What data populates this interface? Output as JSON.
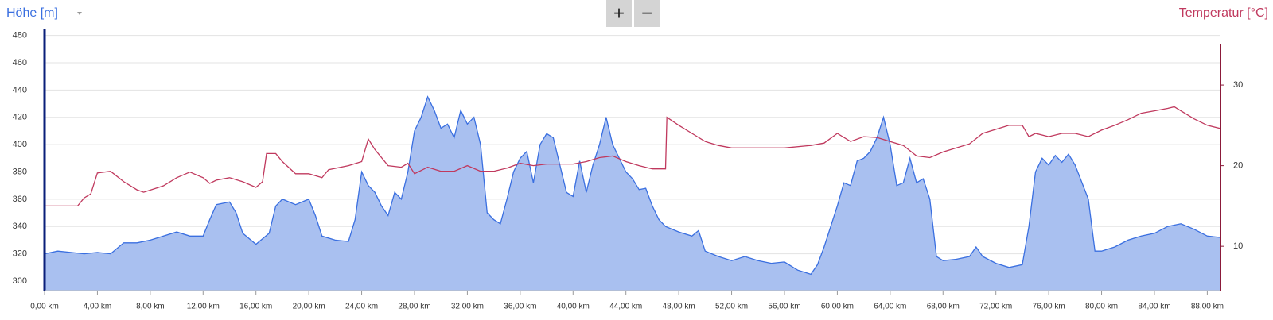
{
  "zoom_buttons": [
    "+",
    "−"
  ],
  "chart_data": {
    "type": "area",
    "xlim": [
      0,
      89
    ],
    "xticks": [
      {
        "value": 0,
        "label": "0,00 km"
      },
      {
        "value": 4,
        "label": "4,00 km"
      },
      {
        "value": 8,
        "label": "8,00 km"
      },
      {
        "value": 12,
        "label": "12,00 km"
      },
      {
        "value": 16,
        "label": "16,00 km"
      },
      {
        "value": 20,
        "label": "20,00 km"
      },
      {
        "value": 24,
        "label": "24,00 km"
      },
      {
        "value": 28,
        "label": "28,00 km"
      },
      {
        "value": 32,
        "label": "32,00 km"
      },
      {
        "value": 36,
        "label": "36,00 km"
      },
      {
        "value": 40,
        "label": "40,00 km"
      },
      {
        "value": 44,
        "label": "44,00 km"
      },
      {
        "value": 48,
        "label": "48,00 km"
      },
      {
        "value": 52,
        "label": "52,00 km"
      },
      {
        "value": 56,
        "label": "56,00 km"
      },
      {
        "value": 60,
        "label": "60,00 km"
      },
      {
        "value": 64,
        "label": "64,00 km"
      },
      {
        "value": 68,
        "label": "68,00 km"
      },
      {
        "value": 72,
        "label": "72,00 km"
      },
      {
        "value": 76,
        "label": "76,00 km"
      },
      {
        "value": 80,
        "label": "80,00 km"
      },
      {
        "value": 84,
        "label": "84,00 km"
      },
      {
        "value": 88,
        "label": "88,00 km"
      }
    ],
    "ylim": [
      293,
      485
    ],
    "yticks": [
      300,
      320,
      340,
      360,
      380,
      400,
      420,
      440,
      460,
      480
    ],
    "y2lim": [
      4.5,
      37
    ],
    "y2ticks": [
      10,
      20,
      30
    ],
    "grid": true,
    "series": [
      {
        "name": "Höhe [m]",
        "type": "area",
        "color": "#3a6fe0",
        "fill": "#a9c0f0",
        "x": [
          0,
          1,
          2,
          3,
          4,
          5,
          6,
          7,
          8,
          9,
          10,
          11,
          12,
          12.5,
          13,
          14,
          14.5,
          15,
          16,
          17,
          17.5,
          18,
          19,
          20,
          20.5,
          21,
          22,
          23,
          23.5,
          24,
          24.5,
          25,
          25.5,
          26,
          26.5,
          27,
          27.5,
          28,
          28.5,
          29,
          29.5,
          30,
          30.5,
          31,
          31.5,
          32,
          32.5,
          33,
          33.5,
          34,
          34.5,
          35,
          35.5,
          36,
          36.5,
          37,
          37.5,
          38,
          38.5,
          39,
          39.5,
          40,
          40.5,
          41,
          41.5,
          42,
          42.5,
          43,
          43.5,
          44,
          44.5,
          45,
          45.5,
          46,
          46.5,
          47,
          48,
          49,
          49.5,
          50,
          51,
          52,
          53,
          54,
          55,
          56,
          57,
          58,
          58.5,
          59,
          59.5,
          60,
          60.5,
          61,
          61.5,
          62,
          62.5,
          63,
          63.5,
          64,
          64.5,
          65,
          65.5,
          66,
          66.5,
          67,
          67.5,
          68,
          69,
          70,
          70.5,
          71,
          72,
          73,
          74,
          74.5,
          75,
          75.5,
          76,
          76.5,
          77,
          77.5,
          78,
          79,
          79.5,
          80,
          81,
          82,
          83,
          84,
          85,
          86,
          87,
          88,
          89
        ],
        "values": [
          320,
          322,
          321,
          320,
          321,
          320,
          328,
          328,
          330,
          333,
          336,
          333,
          333,
          345,
          356,
          358,
          350,
          335,
          327,
          335,
          355,
          360,
          356,
          360,
          348,
          333,
          330,
          329,
          345,
          380,
          370,
          365,
          355,
          348,
          365,
          360,
          380,
          410,
          420,
          435,
          425,
          412,
          415,
          405,
          425,
          415,
          420,
          400,
          350,
          345,
          342,
          360,
          380,
          390,
          395,
          372,
          400,
          408,
          405,
          385,
          365,
          362,
          388,
          365,
          385,
          400,
          420,
          400,
          390,
          380,
          375,
          367,
          368,
          355,
          345,
          340,
          336,
          333,
          337,
          322,
          318,
          315,
          318,
          315,
          313,
          314,
          308,
          305,
          312,
          325,
          340,
          355,
          372,
          370,
          388,
          390,
          395,
          405,
          420,
          400,
          370,
          372,
          390,
          372,
          375,
          360,
          318,
          315,
          316,
          318,
          325,
          318,
          313,
          310,
          312,
          340,
          380,
          390,
          385,
          392,
          387,
          393,
          385,
          360,
          322,
          322,
          325,
          330,
          333,
          335,
          340,
          342,
          338,
          333,
          332
        ]
      },
      {
        "name": "Temperatur [°C]",
        "type": "line",
        "axis": "y2",
        "color": "#c0395e",
        "x": [
          0,
          2.5,
          3,
          3.5,
          4,
          5,
          6,
          7,
          7.5,
          9,
          10,
          11,
          12,
          12.5,
          13,
          14,
          15,
          16,
          16.5,
          16.8,
          17.5,
          18,
          19,
          20,
          21,
          21.5,
          23,
          24,
          24.5,
          25,
          26,
          27,
          27.5,
          28,
          29,
          30,
          31,
          32,
          33,
          34,
          35,
          36,
          37,
          38,
          39,
          40,
          41,
          42,
          43,
          44,
          45,
          46,
          47,
          47.1,
          48,
          49,
          50,
          51,
          52,
          54,
          56,
          58,
          59,
          60,
          61,
          62,
          63,
          64,
          65,
          66,
          67,
          68,
          70,
          71,
          72,
          73,
          74,
          74.5,
          75,
          76,
          77,
          78,
          79,
          80,
          81,
          82,
          83,
          84,
          85,
          85.5,
          86,
          87,
          88,
          89
        ],
        "values": [
          15,
          15,
          16,
          16.5,
          19.1,
          19.3,
          18,
          17,
          16.7,
          17.5,
          18.5,
          19.2,
          18.5,
          17.8,
          18.2,
          18.5,
          18,
          17.3,
          18,
          21.5,
          21.5,
          20.5,
          19,
          19,
          18.5,
          19.5,
          20,
          20.5,
          23.3,
          22,
          20,
          19.8,
          20.3,
          19,
          19.8,
          19.3,
          19.3,
          20,
          19.3,
          19.3,
          19.7,
          20.3,
          20,
          20.2,
          20.2,
          20.2,
          20.5,
          21,
          21.2,
          20.5,
          20,
          19.6,
          19.6,
          26,
          25,
          24,
          23,
          22.5,
          22.2,
          22.2,
          22.2,
          22.5,
          22.8,
          24,
          23,
          23.6,
          23.5,
          23,
          22.5,
          21.2,
          21,
          21.7,
          22.7,
          24,
          24.5,
          25,
          25,
          23.6,
          24,
          23.6,
          24,
          24,
          23.6,
          24.4,
          25,
          25.7,
          26.5,
          26.8,
          27.1,
          27.3,
          26.8,
          25.8,
          25,
          24.6
        ]
      }
    ]
  }
}
